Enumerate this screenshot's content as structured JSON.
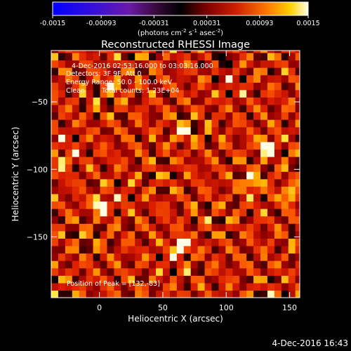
{
  "chart_data": {
    "type": "heatmap",
    "title": "Reconstructed RHESSI Image",
    "xlabel": "Heliocentric X (arcsec)",
    "ylabel": "Heliocentric Y (arcsec)",
    "xlim": [
      -38,
      158
    ],
    "ylim": [
      -195,
      -12
    ],
    "x_ticks": [
      0,
      50,
      100,
      150
    ],
    "y_ticks": [
      -50,
      -100,
      -150
    ],
    "colorbar": {
      "min": -0.0015,
      "max": 0.0015,
      "tick_values": [
        -0.0015,
        -0.00093,
        -0.00031,
        0.00031,
        0.00093,
        0.0015
      ],
      "tick_labels": [
        "-0.0015",
        "-0.00093",
        "-0.00031",
        "0.00031",
        "0.00093",
        "0.0015"
      ],
      "unit_parts": [
        "(photons cm",
        "-2",
        " s",
        "-1",
        " asec",
        "-2",
        ")"
      ]
    },
    "annotations": {
      "time_range": "4-Dec-2016 02:53:16.000 to 03:03:16.000",
      "detectors": "Detectors: 3F 9F, Att 0",
      "energy_range": "Energy Range: 50.0 - 100.0 keV",
      "clean": "Clean",
      "total_counts": "Total counts: 1.23E+04",
      "peak": "Position of Peak = [132,-83]"
    },
    "peak": {
      "x": 132,
      "y": -83
    },
    "bright_sources": [
      {
        "x": 132,
        "y": -83,
        "value": 0.0015
      },
      {
        "x": 64,
        "y": -157,
        "value": 0.0013
      },
      {
        "x": 1,
        "y": -126,
        "value": 0.0012
      },
      {
        "x": 120,
        "y": -110,
        "value": 0.0011
      },
      {
        "x": 150,
        "y": -118,
        "value": 0.001
      },
      {
        "x": 65,
        "y": -72,
        "value": 0.0009
      },
      {
        "x": -30,
        "y": -92,
        "value": 0.0009
      },
      {
        "x": 12,
        "y": -38,
        "value": 0.0008
      },
      {
        "x": 96,
        "y": -18,
        "value": -0.0012
      }
    ],
    "timestamp": "4-Dec-2016 16:43"
  }
}
